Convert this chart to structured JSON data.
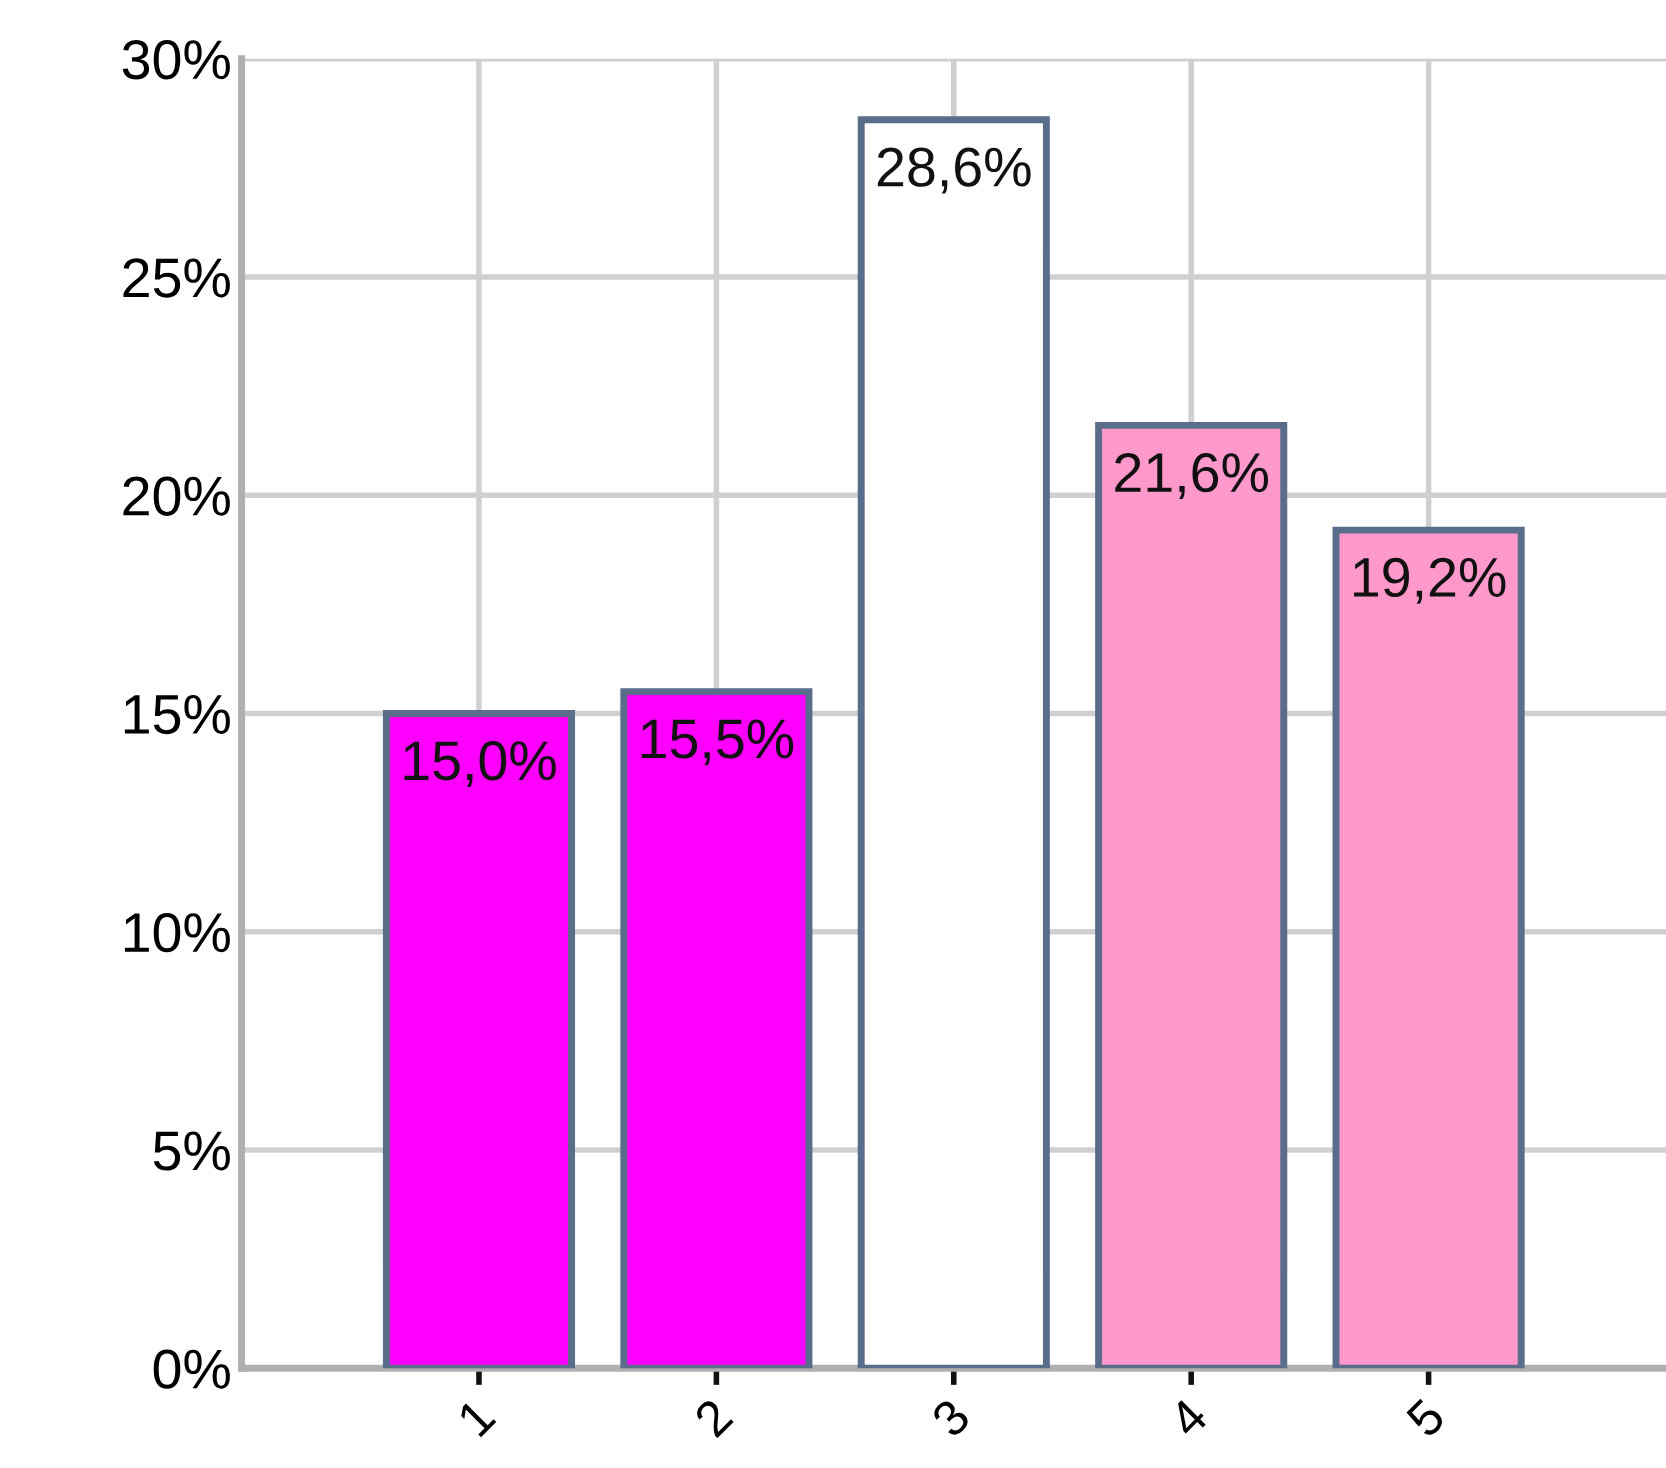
{
  "chart_data": {
    "type": "bar",
    "categories": [
      "1",
      "2",
      "3",
      "4",
      "5"
    ],
    "values": [
      15.0,
      15.5,
      28.6,
      21.6,
      19.2
    ],
    "colors": [
      "#ff00ff",
      "#ff00ff",
      "#ffffff",
      "#ff99cc",
      "#ff99cc"
    ],
    "value_labels": [
      "15,0%",
      "15,5%",
      "28,6%",
      "21,6%",
      "19,2%"
    ],
    "ylim": [
      0,
      30
    ],
    "yticks": [
      {
        "value": 0,
        "label": "0%"
      },
      {
        "value": 5,
        "label": "5%"
      },
      {
        "value": 10,
        "label": "10%"
      },
      {
        "value": 15,
        "label": "15%"
      },
      {
        "value": 20,
        "label": "20%"
      },
      {
        "value": 25,
        "label": "25%"
      },
      {
        "value": 30,
        "label": "30%"
      }
    ],
    "grid": true
  }
}
